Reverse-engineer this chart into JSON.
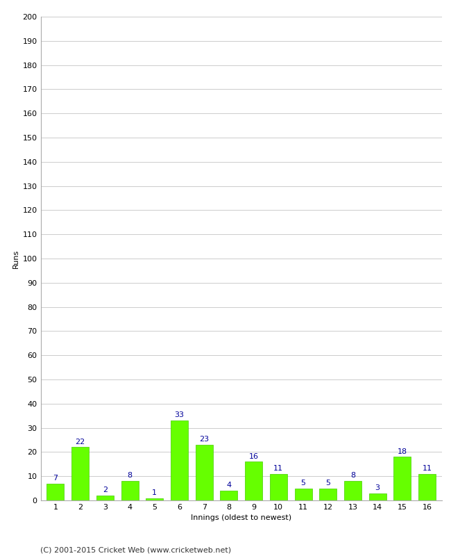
{
  "title": "",
  "xlabel": "Innings (oldest to newest)",
  "ylabel": "Runs",
  "categories": [
    "1",
    "2",
    "3",
    "4",
    "5",
    "6",
    "7",
    "8",
    "9",
    "10",
    "11",
    "12",
    "13",
    "14",
    "15",
    "16"
  ],
  "values": [
    7,
    22,
    2,
    8,
    1,
    33,
    23,
    4,
    16,
    11,
    5,
    5,
    8,
    3,
    18,
    11
  ],
  "bar_color": "#66ff00",
  "bar_edge_color": "#44cc00",
  "label_color": "#000099",
  "ylim": [
    0,
    200
  ],
  "yticks": [
    0,
    10,
    20,
    30,
    40,
    50,
    60,
    70,
    80,
    90,
    100,
    110,
    120,
    130,
    140,
    150,
    160,
    170,
    180,
    190,
    200
  ],
  "grid_color": "#cccccc",
  "background_color": "#ffffff",
  "footer_text": "(C) 2001-2015 Cricket Web (www.cricketweb.net)",
  "axis_label_fontsize": 8,
  "tick_fontsize": 8,
  "value_label_fontsize": 8,
  "footer_fontsize": 8
}
